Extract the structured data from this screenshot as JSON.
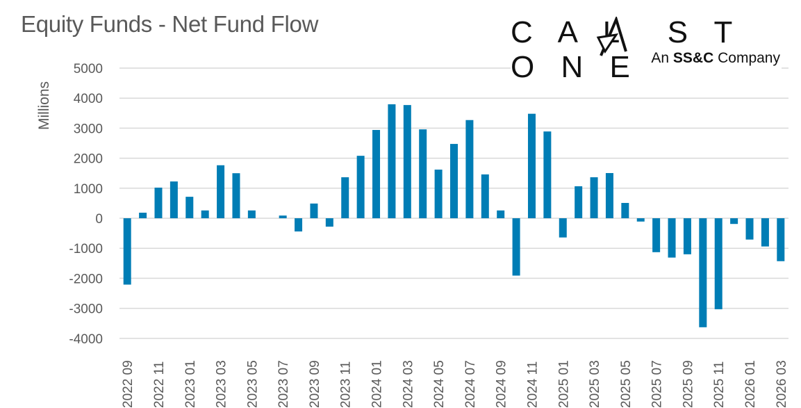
{
  "title": "Equity Funds - Net Fund Flow",
  "logo": {
    "word": "CALASTONE",
    "prefix": "An",
    "brand": "SS&C",
    "suffix": "Company"
  },
  "colors": {
    "bar": "#007DB5",
    "grid": "#D9D9D9",
    "text": "#595959"
  },
  "chart_data": {
    "type": "bar",
    "title": "Equity Funds - Net Fund Flow",
    "xlabel": "",
    "ylabel": "Millions",
    "ylim": [
      -4000,
      5000
    ],
    "yticks": [
      5000,
      4000,
      3000,
      2000,
      1000,
      0,
      -1000,
      -2000,
      -3000,
      -4000
    ],
    "grid": true,
    "categories": [
      "2022 09",
      "2022 10",
      "2022 11",
      "2022 12",
      "2023 01",
      "2023 02",
      "2023 03",
      "2023 04",
      "2023 05",
      "2023 06",
      "2023 07",
      "2023 08",
      "2023 09",
      "2023 10",
      "2023 11",
      "2023 12",
      "2024 01",
      "2024 02",
      "2024 03",
      "2024 04",
      "2024 05",
      "2024 06",
      "2024 07",
      "2024 08",
      "2024 09",
      "2024 10",
      "2024 11",
      "2024 12",
      "2025 01",
      "2025 02",
      "2025 03",
      "2025 04",
      "2025 05",
      "2025 06",
      "2025 07",
      "2025 08",
      "2025 09",
      "2025 10",
      "2025 11",
      "2025 12",
      "2026 01",
      "2026 02",
      "2026 03"
    ],
    "values": [
      -2210,
      185,
      1020,
      1225,
      715,
      260,
      1765,
      1500,
      260,
      0,
      90,
      -440,
      490,
      -280,
      1365,
      2080,
      2940,
      3795,
      3770,
      2960,
      1620,
      2475,
      3270,
      1460,
      260,
      -1910,
      3480,
      2890,
      -640,
      1065,
      1365,
      1505,
      510,
      -110,
      -1130,
      -1310,
      -1200,
      -3630,
      -3030,
      -190,
      -710,
      -940,
      -1430
    ]
  }
}
